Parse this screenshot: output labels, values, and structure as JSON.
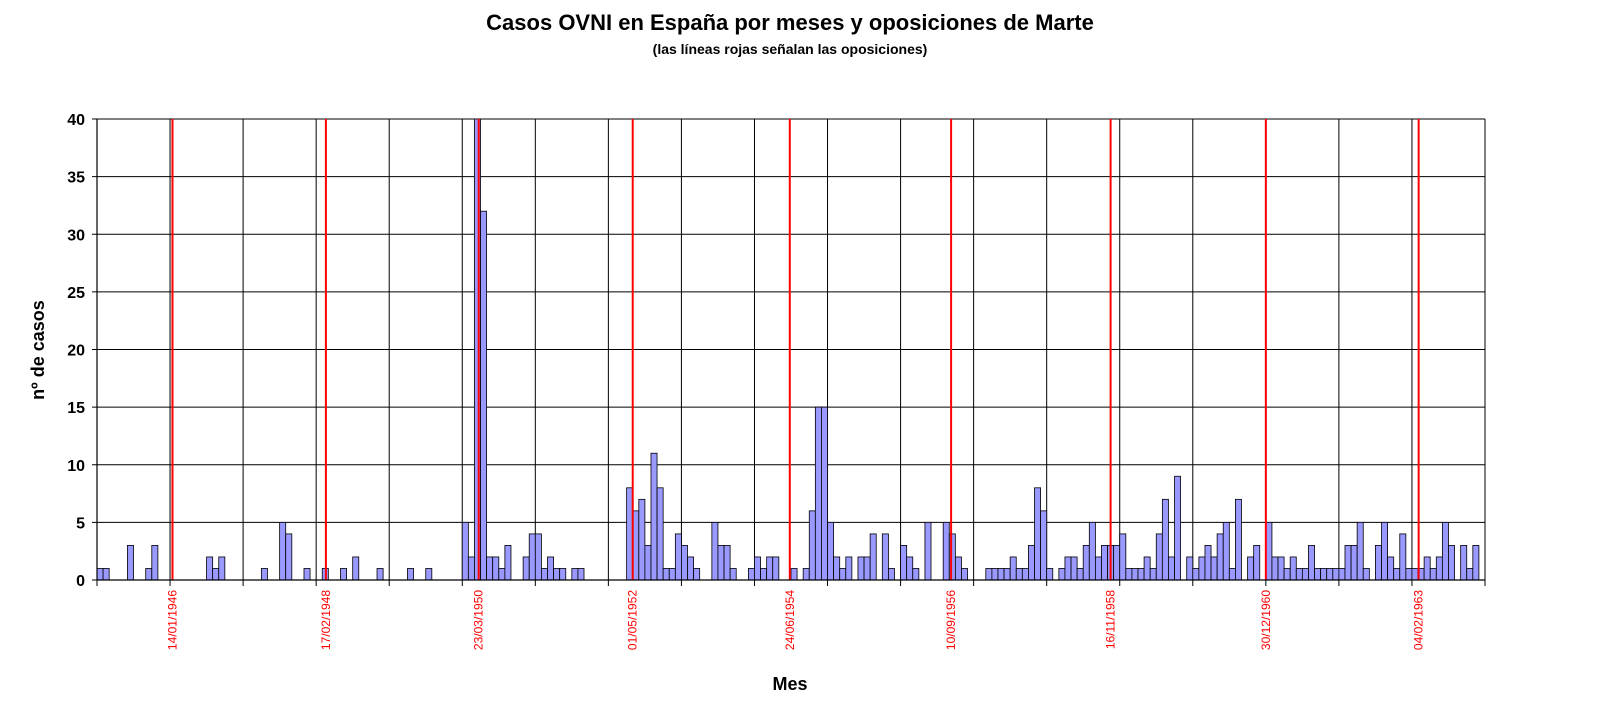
{
  "chart_data": {
    "type": "bar",
    "title": "Casos OVNI en España por meses y oposiciones de Marte",
    "subtitle": "(las líneas rojas señalan las oposiciones)",
    "y_label": "nº de casos",
    "x_label": "Mes",
    "ylim": [
      0,
      40
    ],
    "yticks": [
      0,
      5,
      10,
      15,
      20,
      25,
      30,
      35,
      40
    ],
    "grid": true,
    "xgrid_interval": 12,
    "color": "#9999ff",
    "opposition_color": "#ff0000",
    "categories": [
      null,
      null,
      null,
      null,
      null,
      null,
      null,
      null,
      null,
      null,
      null,
      null,
      null,
      null,
      null,
      null,
      null,
      null,
      null,
      null,
      null,
      null,
      null,
      null,
      null,
      null,
      null,
      null,
      null,
      null,
      null,
      null,
      null,
      null,
      null,
      null,
      null,
      null,
      null,
      null,
      null,
      null,
      null,
      null,
      null,
      null,
      null,
      null,
      null,
      null,
      null,
      null,
      null,
      null,
      null,
      null,
      null,
      null,
      null,
      null,
      null,
      null,
      null,
      null,
      null,
      null,
      null,
      null,
      null,
      null,
      null,
      null,
      null,
      null,
      null,
      null,
      null,
      null,
      null,
      null,
      null,
      null,
      null,
      null,
      null,
      null,
      null,
      null,
      null,
      null,
      null,
      null,
      null,
      null,
      null,
      null,
      null,
      null,
      null,
      null,
      null,
      null,
      null,
      null,
      null,
      null,
      null,
      null,
      null,
      null,
      null,
      null,
      null,
      null,
      null,
      null,
      null,
      null,
      null,
      null,
      null,
      null,
      null,
      null,
      null,
      null,
      null,
      null,
      null,
      null,
      null,
      null,
      null,
      null,
      null,
      null,
      null,
      null,
      null,
      null,
      null,
      null,
      null,
      null,
      null,
      null,
      null,
      null,
      null,
      null,
      null,
      null,
      null,
      null,
      null,
      null,
      null,
      null,
      null,
      null,
      null,
      null,
      null,
      null,
      null,
      null,
      null,
      null,
      null,
      null,
      null,
      null,
      null,
      null,
      null,
      null,
      null,
      null,
      null,
      null,
      null,
      null,
      null,
      null,
      null,
      null,
      null,
      null,
      null,
      null,
      null,
      null,
      null,
      null,
      null,
      null,
      null,
      null,
      null,
      null,
      null,
      null,
      null,
      null,
      null,
      null,
      null,
      null,
      null,
      null,
      null,
      null,
      null,
      null,
      null,
      null,
      null,
      null,
      null,
      null,
      null,
      null,
      null,
      null,
      null,
      null,
      null,
      null
    ],
    "values": [
      1,
      1,
      0,
      0,
      0,
      3,
      0,
      0,
      1,
      3,
      0,
      0,
      0,
      0,
      0,
      0,
      0,
      0,
      2,
      1,
      2,
      0,
      0,
      0,
      0,
      0,
      0,
      1,
      0,
      0,
      5,
      4,
      0,
      0,
      1,
      0,
      0,
      1,
      0,
      0,
      1,
      0,
      2,
      0,
      0,
      0,
      1,
      0,
      0,
      0,
      0,
      1,
      0,
      0,
      1,
      0,
      0,
      0,
      0,
      0,
      5,
      2,
      40,
      32,
      2,
      2,
      1,
      3,
      0,
      0,
      2,
      4,
      4,
      1,
      2,
      1,
      1,
      0,
      1,
      1,
      0,
      0,
      0,
      0,
      0,
      0,
      0,
      8,
      6,
      7,
      3,
      11,
      8,
      1,
      1,
      4,
      3,
      2,
      1,
      0,
      0,
      5,
      3,
      3,
      1,
      0,
      0,
      1,
      2,
      1,
      2,
      2,
      0,
      0,
      1,
      0,
      1,
      6,
      15,
      15,
      5,
      2,
      1,
      2,
      0,
      2,
      2,
      4,
      0,
      4,
      1,
      0,
      3,
      2,
      1,
      0,
      5,
      0,
      0,
      5,
      4,
      2,
      1,
      0,
      0,
      0,
      1,
      1,
      1,
      1,
      2,
      1,
      1,
      3,
      8,
      6,
      1,
      0,
      1,
      2,
      2,
      1,
      3,
      5,
      2,
      3,
      3,
      3,
      4,
      1,
      1,
      1,
      2,
      1,
      4,
      7,
      2,
      9,
      0,
      2,
      1,
      2,
      3,
      2,
      4,
      5,
      1,
      7,
      0,
      2,
      3,
      0,
      5,
      2,
      2,
      1,
      2,
      1,
      1,
      3,
      1,
      1,
      1,
      1,
      1,
      3,
      3,
      5,
      1,
      0,
      3,
      5,
      2,
      1,
      4,
      1,
      1,
      1,
      2,
      1,
      2,
      5,
      3,
      0,
      3,
      1,
      3,
      0
    ],
    "oppositions": [
      {
        "label": "14/01/1946",
        "x": 12.4
      },
      {
        "label": "17/02/1948",
        "x": 37.6
      },
      {
        "label": "23/03/1950",
        "x": 62.7
      },
      {
        "label": "01/05/1952",
        "x": 88.0
      },
      {
        "label": "24/06/1954",
        "x": 113.8
      },
      {
        "label": "10/09/1956",
        "x": 140.3
      },
      {
        "label": "16/11/1958",
        "x": 166.5
      },
      {
        "label": "30/12/1960",
        "x": 192.0
      },
      {
        "label": "04/02/1963",
        "x": 217.1
      }
    ]
  }
}
